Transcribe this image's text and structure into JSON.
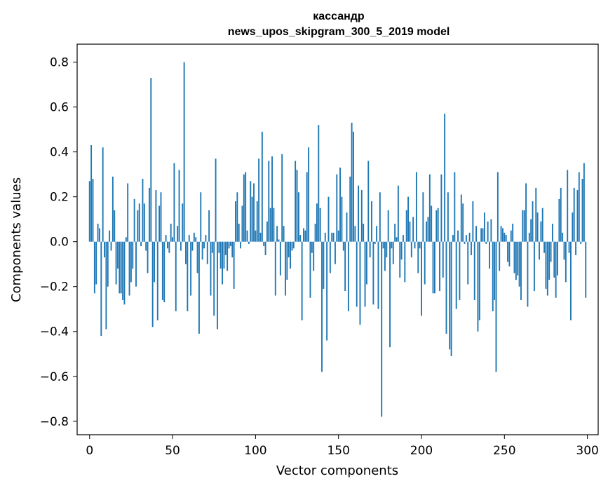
{
  "chart_data": {
    "type": "bar",
    "title": "кассандр",
    "subtitle": "news_upos_skipgram_300_5_2019 model",
    "xlabel": "Vector components",
    "ylabel": "Components values",
    "xlim": [
      -7.5,
      306.5
    ],
    "ylim": [
      -0.86,
      0.88
    ],
    "xticks": [
      0,
      50,
      100,
      150,
      200,
      250,
      300
    ],
    "yticks": [
      -0.8,
      -0.6,
      -0.4,
      -0.2,
      0.0,
      0.2,
      0.4,
      0.6,
      0.8
    ],
    "xtick_labels": [
      "0",
      "50",
      "100",
      "150",
      "200",
      "250",
      "300"
    ],
    "ytick_labels": [
      "−0.8",
      "−0.6",
      "−0.4",
      "−0.2",
      "0.0",
      "0.2",
      "0.4",
      "0.6",
      "0.8"
    ],
    "bar_color": "#1f77b4",
    "grid": false,
    "values": [
      0.27,
      0.43,
      0.28,
      -0.23,
      -0.19,
      0.08,
      0.06,
      -0.42,
      0.42,
      -0.07,
      -0.39,
      -0.2,
      0.05,
      -0.04,
      0.29,
      0.14,
      -0.19,
      -0.12,
      -0.23,
      -0.23,
      -0.26,
      -0.28,
      0.02,
      0.26,
      -0.24,
      -0.18,
      -0.12,
      0.19,
      -0.2,
      0.14,
      0.17,
      -0.02,
      0.28,
      0.17,
      -0.04,
      -0.14,
      0.24,
      0.73,
      -0.38,
      -0.18,
      0.23,
      -0.35,
      0.16,
      0.22,
      -0.26,
      -0.27,
      0.03,
      -0.03,
      -0.05,
      0.08,
      0.02,
      0.35,
      -0.31,
      0.07,
      0.32,
      -0.04,
      0.17,
      0.8,
      -0.1,
      -0.31,
      0.03,
      -0.24,
      -0.04,
      0.04,
      0.02,
      -0.14,
      -0.41,
      0.22,
      -0.08,
      -0.03,
      0.03,
      -0.1,
      0.14,
      -0.24,
      -0.05,
      -0.33,
      0.37,
      -0.39,
      -0.05,
      -0.12,
      -0.19,
      -0.12,
      -0.06,
      -0.13,
      -0.03,
      -0.02,
      -0.07,
      -0.21,
      0.18,
      0.22,
      0.08,
      -0.03,
      0.16,
      0.3,
      0.31,
      0.05,
      -0.01,
      0.27,
      0.2,
      0.26,
      0.05,
      0.18,
      0.37,
      0.04,
      0.49,
      -0.02,
      -0.06,
      0.09,
      0.36,
      0.15,
      0.38,
      0.15,
      -0.24,
      0.07,
      0.01,
      -0.15,
      0.39,
      0.07,
      -0.24,
      -0.17,
      -0.07,
      -0.12,
      -0.04,
      -0.03,
      0.36,
      0.32,
      0.22,
      0.03,
      -0.35,
      0.06,
      0.05,
      0.31,
      0.42,
      -0.25,
      -0.05,
      -0.13,
      0.08,
      0.17,
      0.52,
      0.15,
      -0.58,
      -0.21,
      0.04,
      -0.44,
      0.2,
      -0.14,
      0.04,
      0.04,
      -0.1,
      0.3,
      0.05,
      0.33,
      0.2,
      -0.04,
      -0.22,
      0.13,
      -0.31,
      0.29,
      0.53,
      0.49,
      0.07,
      -0.29,
      0.25,
      -0.37,
      0.23,
      0.08,
      -0.29,
      -0.19,
      0.36,
      -0.07,
      0.18,
      -0.28,
      -0.01,
      0.07,
      -0.3,
      0.22,
      -0.78,
      -0.03,
      -0.13,
      -0.07,
      0.14,
      -0.47,
      -0.03,
      -0.1,
      0.08,
      0.02,
      0.25,
      -0.16,
      -0.08,
      0.03,
      -0.18,
      0.14,
      0.2,
      0.09,
      -0.07,
      0.11,
      -0.03,
      0.31,
      -0.14,
      -0.03,
      -0.33,
      0.22,
      -0.19,
      0.09,
      0.11,
      0.3,
      0.16,
      -0.23,
      -0.23,
      0.14,
      0.15,
      -0.22,
      0.3,
      -0.16,
      0.57,
      -0.41,
      0.22,
      -0.48,
      -0.51,
      0.03,
      0.31,
      -0.3,
      0.05,
      -0.26,
      0.21,
      0.17,
      -0.01,
      0.03,
      -0.19,
      0.04,
      -0.06,
      0.18,
      -0.26,
      0.07,
      -0.4,
      -0.35,
      0.06,
      0.06,
      0.13,
      -0.01,
      0.09,
      -0.12,
      0.1,
      -0.31,
      -0.26,
      -0.58,
      0.31,
      -0.13,
      0.07,
      0.06,
      0.04,
      0.03,
      -0.09,
      -0.11,
      0.05,
      0.08,
      -0.14,
      -0.17,
      -0.15,
      -0.2,
      -0.26,
      0.14,
      0.14,
      0.26,
      -0.29,
      0.04,
      0.1,
      0.18,
      -0.22,
      0.24,
      0.13,
      -0.08,
      0.09,
      0.15,
      -0.05,
      -0.21,
      -0.24,
      -0.17,
      -0.09,
      0.08,
      -0.16,
      -0.25,
      -0.15,
      0.19,
      0.24,
      0.04,
      -0.08,
      -0.18,
      0.32,
      -0.05,
      -0.35,
      0.13,
      0.24,
      -0.06,
      0.23,
      0.31,
      -0.01,
      0.28,
      0.35,
      -0.25
    ]
  }
}
